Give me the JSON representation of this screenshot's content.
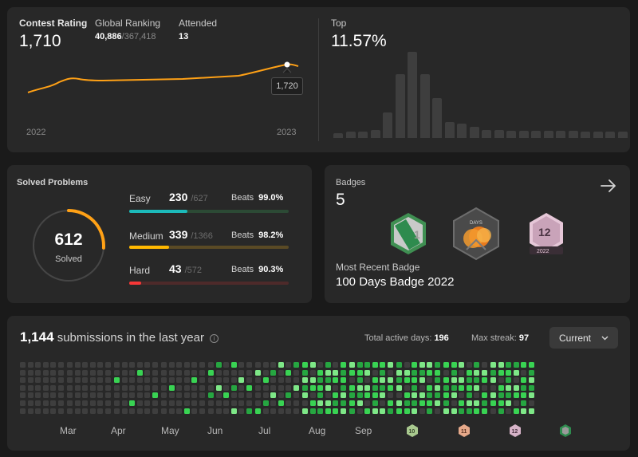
{
  "rating": {
    "contest_rating_label": "Contest Rating",
    "contest_rating_value": "1,710",
    "global_ranking_label": "Global Ranking",
    "global_rank": "40,886",
    "global_total": "/367,418",
    "attended_label": "Attended",
    "attended_value": "13",
    "year_start": "2022",
    "year_end": "2023",
    "tooltip_value": "1,720",
    "top_label": "Top",
    "top_value": "11.57%",
    "accent_color": "#ffa116",
    "histogram": [
      6,
      8,
      8,
      10,
      32,
      80,
      108,
      80,
      50,
      20,
      18,
      14,
      10,
      10,
      9,
      9,
      9,
      9,
      9,
      9,
      8,
      8,
      8,
      8
    ]
  },
  "solved": {
    "title": "Solved Problems",
    "total": "612",
    "total_label": "Solved",
    "progress_fraction": 0.26,
    "rows": [
      {
        "label": "Easy",
        "count": "230",
        "total": "/627",
        "beats_label": "Beats",
        "beats": "99.0%",
        "fraction": 0.367,
        "color": "#1cbaba",
        "track": "#2c4a35"
      },
      {
        "label": "Medium",
        "count": "339",
        "total": "/1366",
        "beats_label": "Beats",
        "beats": "98.2%",
        "fraction": 0.248,
        "color": "#ffb800",
        "track": "#5a4a25"
      },
      {
        "label": "Hard",
        "count": "43",
        "total": "/572",
        "beats_label": "Beats",
        "beats": "90.3%",
        "fraction": 0.075,
        "color": "#f63737",
        "track": "#4e2a2a"
      }
    ]
  },
  "badges": {
    "title": "Badges",
    "count": "5",
    "recent_label": "Most Recent Badge",
    "recent_name": "100 Days Badge 2022",
    "items": [
      {
        "icon": "leetcode-1-badge-icon"
      },
      {
        "icon": "days-badge-icon",
        "text": "DAYS"
      },
      {
        "icon": "month-12-badge-icon",
        "text": "12",
        "year": "2022"
      }
    ]
  },
  "calendar": {
    "count": "1,144",
    "label": "submissions in the last year",
    "total_active_label": "Total active days:",
    "total_active_value": "196",
    "max_streak_label": "Max streak:",
    "max_streak_value": "97",
    "selector_value": "Current",
    "months": [
      "Mar",
      "Apr",
      "May",
      "Jun",
      "Jul",
      "Aug",
      "Sep"
    ]
  }
}
